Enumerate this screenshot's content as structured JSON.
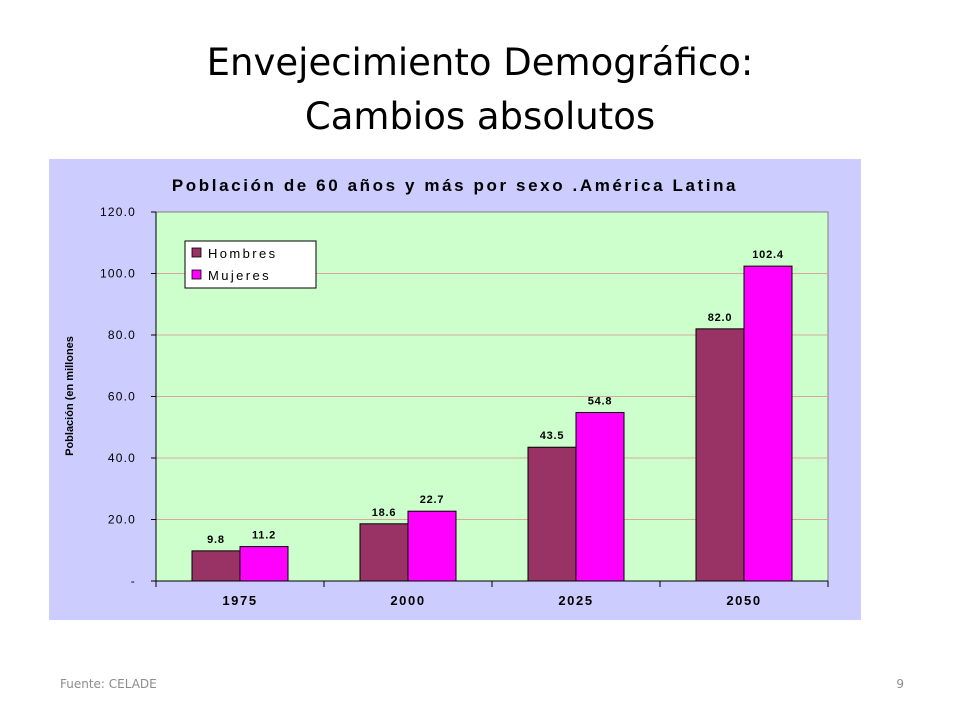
{
  "slide": {
    "title_line1": "Envejecimiento Demográfico:",
    "title_line2": "Cambios absolutos",
    "footer_source": "Fuente: CELADE",
    "page_number": "9"
  },
  "chart_data": {
    "type": "bar",
    "title": "Población de 60 años y más por sexo .América Latina",
    "xlabel": "",
    "ylabel": "Población (en millones",
    "categories": [
      "1975",
      "2000",
      "2025",
      "2050"
    ],
    "series": [
      {
        "name": "Hombres",
        "values": [
          9.8,
          18.6,
          43.5,
          82.0
        ],
        "labels": [
          "9.8",
          "18.6",
          "43.5",
          "82.0"
        ],
        "color": "#993366"
      },
      {
        "name": "Mujeres",
        "values": [
          11.2,
          22.7,
          54.8,
          102.4
        ],
        "labels": [
          "11.2",
          "22.7",
          "54.8",
          "102.4"
        ],
        "color": "#ff00ff"
      }
    ],
    "ylim": [
      0,
      120
    ],
    "yticks": [
      0,
      20,
      40,
      60,
      80,
      100,
      120
    ],
    "ytick_labels": [
      "-",
      "20.0",
      "40.0",
      "60.0",
      "80.0",
      "100.0",
      "120.0"
    ],
    "grid": true,
    "legend_position": "top-left",
    "colors": {
      "panel_background": "#ccccff",
      "plot_background": "#ccffcc",
      "gridline": "#d9a89a"
    }
  }
}
